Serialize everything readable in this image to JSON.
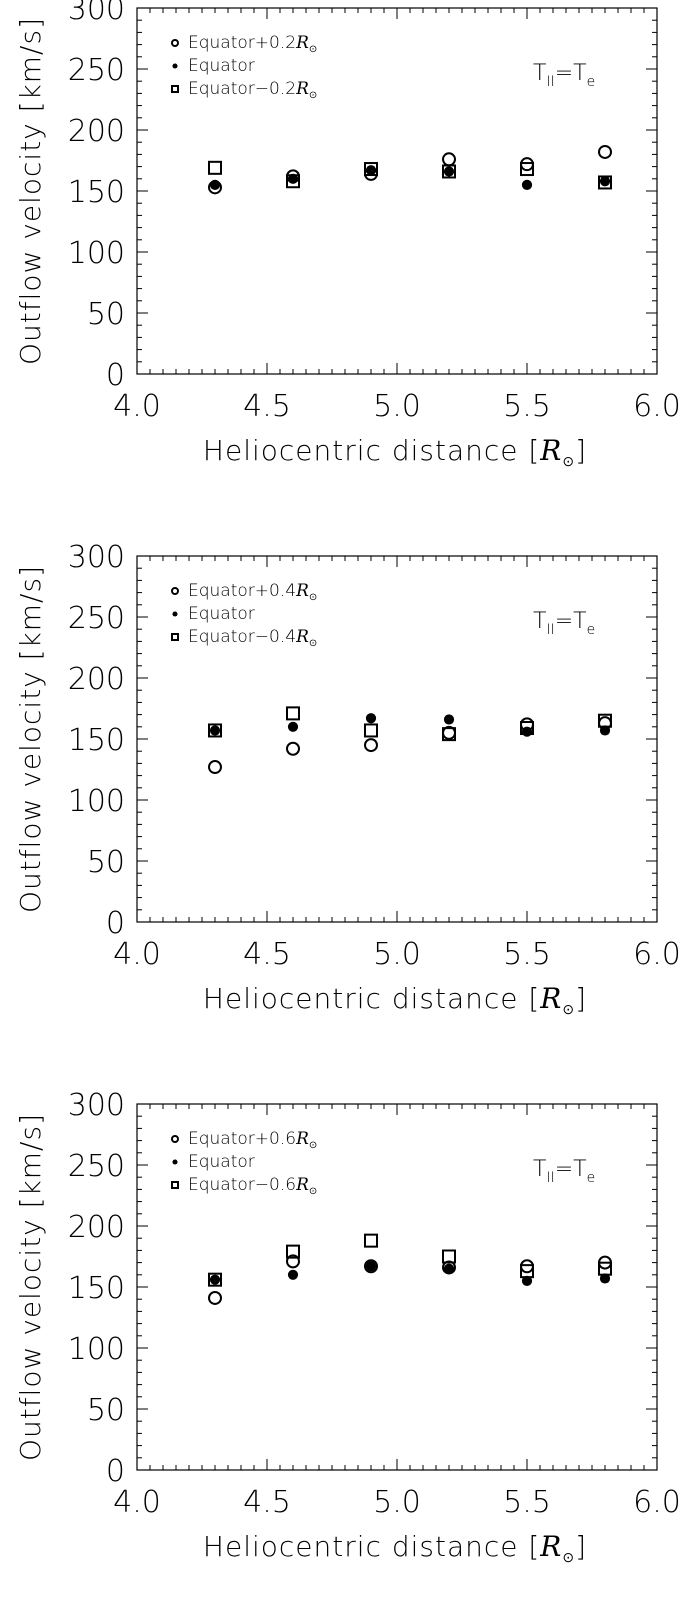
{
  "chart_data": [
    {
      "type": "scatter",
      "panel": "top",
      "xlabel": "Heliocentric distance",
      "xlabel_unit": "R",
      "ylabel": "Outflow velocity [km/s]",
      "xlim": [
        4.0,
        6.0
      ],
      "ylim": [
        0,
        300
      ],
      "x_ticks": [
        "4.0",
        "4.5",
        "5.0",
        "5.5",
        "6.0"
      ],
      "y_ticks": [
        "0",
        "50",
        "100",
        "150",
        "200",
        "250",
        "300"
      ],
      "annotation": {
        "left": "T",
        "left_sub": "II",
        "eq": "=",
        "right": "T",
        "right_sub": "e"
      },
      "legend_position": "top-left",
      "series": [
        {
          "name": "Equator+0.2R",
          "legend_prefix": "Equator+0.2",
          "marker": "open-circle",
          "x": [
            4.3,
            4.6,
            4.9,
            5.2,
            5.5,
            5.8
          ],
          "y": [
            153,
            162,
            164,
            176,
            172,
            182
          ]
        },
        {
          "name": "Equator",
          "legend_prefix": "Equator",
          "marker": "filled-circle",
          "x": [
            4.3,
            4.6,
            4.9,
            5.2,
            5.5,
            5.8
          ],
          "y": [
            155,
            160,
            167,
            166,
            155,
            158
          ]
        },
        {
          "name": "Equator−0.2R",
          "legend_prefix": "Equator−0.2",
          "marker": "open-square",
          "x": [
            4.3,
            4.6,
            4.9,
            5.2,
            5.5,
            5.8
          ],
          "y": [
            169,
            158,
            168,
            166,
            168,
            157
          ]
        }
      ]
    },
    {
      "type": "scatter",
      "panel": "middle",
      "xlabel": "Heliocentric distance",
      "xlabel_unit": "R",
      "ylabel": "Outflow velocity [km/s]",
      "xlim": [
        4.0,
        6.0
      ],
      "ylim": [
        0,
        300
      ],
      "x_ticks": [
        "4.0",
        "4.5",
        "5.0",
        "5.5",
        "6.0"
      ],
      "y_ticks": [
        "0",
        "50",
        "100",
        "150",
        "200",
        "250",
        "300"
      ],
      "annotation": {
        "left": "T",
        "left_sub": "II",
        "eq": "=",
        "right": "T",
        "right_sub": "e"
      },
      "legend_position": "top-left",
      "series": [
        {
          "name": "Equator+0.4R",
          "legend_prefix": "Equator+0.4",
          "marker": "open-circle",
          "x": [
            4.3,
            4.6,
            4.9,
            5.2,
            5.5,
            5.8
          ],
          "y": [
            127,
            142,
            145,
            155,
            162,
            163
          ]
        },
        {
          "name": "Equator",
          "legend_prefix": "Equator",
          "marker": "filled-circle",
          "x": [
            4.3,
            4.6,
            4.9,
            5.2,
            5.5,
            5.8
          ],
          "y": [
            157,
            160,
            167,
            166,
            156,
            157
          ]
        },
        {
          "name": "Equator−0.4R",
          "legend_prefix": "Equator−0.4",
          "marker": "open-square",
          "x": [
            4.3,
            4.6,
            4.9,
            5.2,
            5.5,
            5.8
          ],
          "y": [
            157,
            171,
            157,
            154,
            159,
            165
          ]
        }
      ]
    },
    {
      "type": "scatter",
      "panel": "bottom",
      "xlabel": "Heliocentric distance",
      "xlabel_unit": "R",
      "ylabel": "Outflow velocity [km/s]",
      "xlim": [
        4.0,
        6.0
      ],
      "ylim": [
        0,
        300
      ],
      "x_ticks": [
        "4.0",
        "4.5",
        "5.0",
        "5.5",
        "6.0"
      ],
      "y_ticks": [
        "0",
        "50",
        "100",
        "150",
        "200",
        "250",
        "300"
      ],
      "annotation": {
        "left": "T",
        "left_sub": "II",
        "eq": "=",
        "right": "T",
        "right_sub": "e"
      },
      "legend_position": "top-left",
      "series": [
        {
          "name": "Equator+0.6R",
          "legend_prefix": "Equator+0.6",
          "marker": "open-circle",
          "x": [
            4.3,
            4.6,
            4.9,
            5.2,
            5.5,
            5.8
          ],
          "y": [
            141,
            171,
            167,
            166,
            167,
            170
          ]
        },
        {
          "name": "Equator",
          "legend_prefix": "Equator",
          "marker": "filled-circle",
          "x": [
            4.3,
            4.6,
            4.9,
            5.2,
            5.5,
            5.8
          ],
          "y": [
            156,
            160,
            167,
            165,
            155,
            157
          ]
        },
        {
          "name": "Equator−0.6R",
          "legend_prefix": "Equator−0.6",
          "marker": "open-square",
          "x": [
            4.3,
            4.6,
            4.9,
            5.2,
            5.5,
            5.8
          ],
          "y": [
            156,
            179,
            188,
            175,
            163,
            165
          ]
        }
      ]
    }
  ]
}
